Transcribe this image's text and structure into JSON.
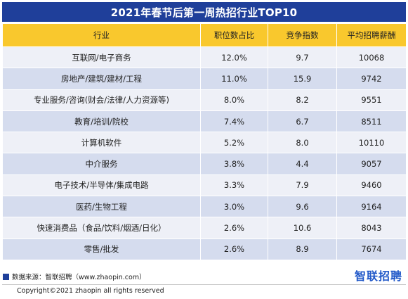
{
  "title": "2021年春节后第一周热招行业TOP10",
  "table": {
    "headers": [
      "行业",
      "职位数占比",
      "竞争指数",
      "平均招聘薪酬"
    ],
    "rows": [
      {
        "industry": "互联网/电子商务",
        "share": "12.0%",
        "competition": "9.7",
        "salary": "10068"
      },
      {
        "industry": "房地产/建筑/建材/工程",
        "share": "11.0%",
        "competition": "15.9",
        "salary": "9742"
      },
      {
        "industry": "专业服务/咨询(财会/法律/人力资源等)",
        "share": "8.0%",
        "competition": "8.2",
        "salary": "9551"
      },
      {
        "industry": "教育/培训/院校",
        "share": "7.4%",
        "competition": "6.7",
        "salary": "8511"
      },
      {
        "industry": "计算机软件",
        "share": "5.2%",
        "competition": "8.0",
        "salary": "10110"
      },
      {
        "industry": "中介服务",
        "share": "3.8%",
        "competition": "4.4",
        "salary": "9057"
      },
      {
        "industry": "电子技术/半导体/集成电路",
        "share": "3.3%",
        "competition": "7.9",
        "salary": "9460"
      },
      {
        "industry": "医药/生物工程",
        "share": "3.0%",
        "competition": "9.6",
        "salary": "9164"
      },
      {
        "industry": "快速消费品（食品/饮料/烟酒/日化）",
        "share": "2.6%",
        "competition": "10.6",
        "salary": "8043"
      },
      {
        "industry": "零售/批发",
        "share": "2.6%",
        "competition": "8.9",
        "salary": "7674"
      }
    ]
  },
  "footer": {
    "source": "数据来源：智联招聘（www.zhaopin.com）",
    "brand": "智联招聘",
    "copyright": "Copyright©2021 zhaopin all rights reserved"
  },
  "colors": {
    "title_bg": "#1f3f9a",
    "header_bg": "#f9c82d",
    "row_light": "#eef0f7",
    "row_dark": "#d5dcee",
    "brand": "#1f57c8"
  }
}
